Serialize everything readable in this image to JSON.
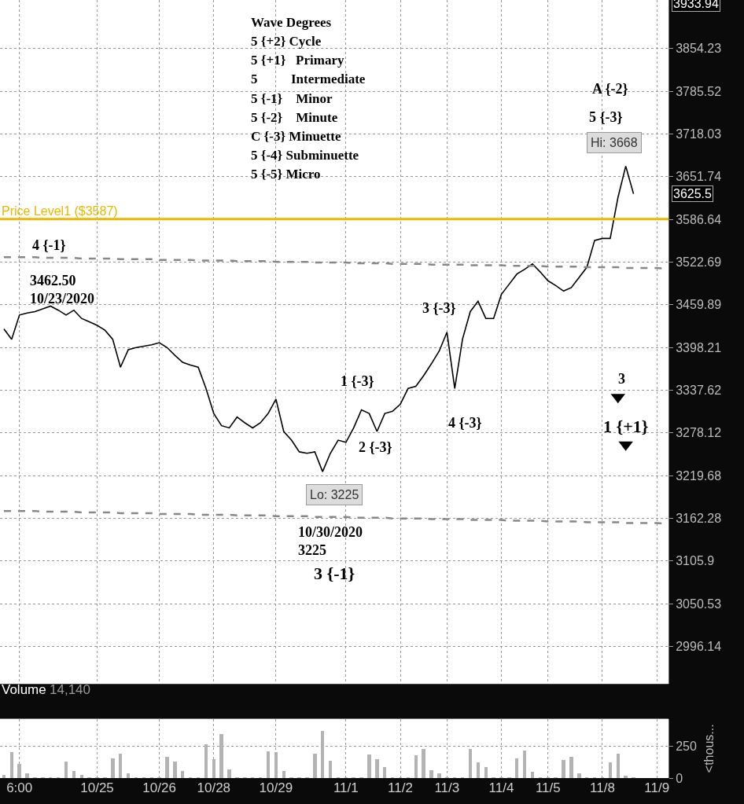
{
  "chart_data": [
    {
      "type": "line",
      "log": true,
      "grid": true,
      "tick_labels": "y",
      "categories": [
        null,
        null,
        null,
        null,
        null,
        null,
        null,
        null,
        null,
        null,
        null,
        null,
        null,
        null,
        null,
        null,
        null,
        null,
        null,
        null,
        null,
        null,
        null,
        null,
        null,
        null,
        null,
        null,
        null,
        null,
        null,
        null,
        null,
        null,
        null,
        null,
        null,
        null,
        null,
        null,
        null,
        null,
        null,
        null,
        null,
        null,
        null,
        null,
        null,
        null,
        null,
        null,
        null,
        null,
        null,
        null,
        null,
        null,
        null,
        null,
        null,
        null,
        null,
        null,
        null,
        null,
        null,
        null,
        null,
        null,
        null,
        null,
        null,
        null,
        null,
        null,
        null,
        null,
        null,
        null,
        null,
        null,
        null,
        null,
        null,
        null
      ],
      "series": [
        {
          "type": "line",
          "color": "#000000",
          "values": [
            3425,
            3410,
            3445,
            3448,
            3450,
            3454,
            3458,
            3452,
            3445,
            3452,
            3440,
            3435,
            3430,
            3423,
            3410,
            3370,
            3395,
            3398,
            3400,
            3402,
            3405,
            3398,
            3387,
            3377,
            3373,
            3370,
            3340,
            3305,
            3288,
            3285,
            3300,
            3292,
            3285,
            3292,
            3305,
            3325,
            3280,
            3268,
            3252,
            3250,
            3252,
            3225,
            3250,
            3268,
            3265,
            3285,
            3310,
            3305,
            3280,
            3305,
            3308,
            3318,
            3340,
            3343,
            3358,
            3375,
            3393,
            3420,
            3340,
            3410,
            3450,
            3465,
            3440,
            3440,
            3475,
            3490,
            3505,
            3512,
            3520,
            3508,
            3495,
            3488,
            3480,
            3485,
            3500,
            3515,
            3555,
            3558,
            3558,
            3620,
            3668,
            3625.5,
            null,
            null,
            null,
            null
          ]
        },
        {
          "type": "line",
          "color": "#888888",
          "line_style": "dashed",
          "values": [
            3530,
            3530,
            3530,
            3530,
            3530,
            3529,
            3529,
            3529,
            3529,
            3529,
            3528,
            3528,
            3528,
            3528,
            3528,
            3527,
            3527,
            3527,
            3527,
            3527,
            3526,
            3526,
            3526,
            3526,
            3526,
            3525,
            3525,
            3525,
            3525,
            3525,
            3524,
            3524,
            3524,
            3524,
            3524,
            3523,
            3523,
            3523,
            3523,
            3523,
            3522,
            3522,
            3522,
            3522,
            3522,
            3521,
            3521,
            3521,
            3521,
            3521,
            3520,
            3520,
            3520,
            3520,
            3520,
            3519,
            3519,
            3519,
            3519,
            3519,
            3518,
            3518,
            3518,
            3518,
            3518,
            3517,
            3517,
            3517,
            3517,
            3517,
            3516,
            3516,
            3516,
            3516,
            3516,
            3515,
            3515,
            3515,
            3515,
            3515,
            3514,
            3514,
            3514,
            3514,
            3514,
            3513
          ]
        },
        {
          "type": "line",
          "color": "#888888",
          "line_style": "dashed",
          "values": [
            3172,
            3172,
            3172,
            3172,
            3172,
            3171,
            3171,
            3171,
            3171,
            3171,
            3170,
            3170,
            3170,
            3170,
            3170,
            3169,
            3169,
            3169,
            3169,
            3169,
            3168,
            3168,
            3168,
            3168,
            3168,
            3167,
            3167,
            3167,
            3167,
            3167,
            3166,
            3166,
            3166,
            3166,
            3166,
            3165,
            3165,
            3165,
            3165,
            3165,
            3164,
            3164,
            3164,
            3164,
            3164,
            3163,
            3163,
            3163,
            3163,
            3163,
            3162,
            3162,
            3162,
            3162,
            3162,
            3161,
            3161,
            3161,
            3161,
            3161,
            3160,
            3160,
            3160,
            3160,
            3160,
            3159,
            3159,
            3159,
            3159,
            3159,
            3158,
            3158,
            3158,
            3158,
            3158,
            3157,
            3157,
            3157,
            3157,
            3157,
            3156,
            3156,
            3156,
            3156,
            3156,
            3155
          ]
        },
        {
          "type": "scatter",
          "color": "#000000",
          "marker": "triangle",
          "values": [
            null,
            null,
            null,
            null,
            null,
            null,
            null,
            null,
            null,
            null,
            null,
            null,
            null,
            null,
            null,
            null,
            null,
            null,
            null,
            null,
            null,
            null,
            null,
            null,
            null,
            null,
            null,
            null,
            null,
            null,
            null,
            null,
            null,
            null,
            null,
            null,
            null,
            null,
            null,
            null,
            null,
            null,
            null,
            null,
            null,
            null,
            null,
            null,
            null,
            null,
            null,
            null,
            null,
            null,
            null,
            null,
            null,
            null,
            null,
            null,
            null,
            null,
            null,
            null,
            null,
            null,
            null,
            null,
            null,
            null,
            null,
            null,
            null,
            null,
            null,
            null,
            null,
            null,
            null,
            3328,
            3262,
            null,
            null,
            null,
            null,
            null
          ]
        }
      ],
      "ylim": [
        2949,
        3934
      ],
      "yticks": [
        2996.14,
        3050.53,
        3105.9,
        3162.28,
        3219.68,
        3278.12,
        3337.62,
        3398.21,
        3459.89,
        3522.69,
        3586.64,
        3651.74,
        3718.03,
        3785.52,
        3854.23
      ],
      "ref_lines": [
        {
          "axis": "y",
          "value": 3587,
          "label": "Price Level1 ($3587)",
          "color": "#e8b900"
        }
      ],
      "annotations": [
        "Hi: 3668",
        "Lo: 3225",
        "3625.5",
        "3933.94",
        "4 {-1}",
        "3462.50\n10/23/2020",
        "1 {-3}",
        "2 {-3}",
        "3 {-3}",
        "4 {-3}",
        "10/30/2020\n3225",
        "3 {-1}",
        "A {-2}",
        "5 {-3}",
        "3",
        "1 {+1}",
        "Wave Degrees",
        "5 {+2} Cycle",
        "5 {+1}   Primary",
        "5          Intermediate",
        "5 {-1}    Minor",
        "5 {-2}    Minute",
        "C {-3} Minuette",
        "5 {-4} Subminuette",
        "5 {-5} Micro"
      ]
    },
    {
      "type": "bar",
      "title": "Volume",
      "ylabel": "<thous...",
      "grid": true,
      "color": "#b3b3b3",
      "annotations": [
        "14,140"
      ],
      "categories": [
        null,
        null,
        "6:00",
        null,
        null,
        null,
        null,
        null,
        null,
        null,
        null,
        null,
        "10/25",
        null,
        null,
        null,
        null,
        null,
        null,
        null,
        "10/26",
        null,
        null,
        null,
        null,
        null,
        null,
        "10/28",
        null,
        null,
        null,
        null,
        null,
        null,
        null,
        "10/29",
        null,
        null,
        null,
        null,
        null,
        null,
        null,
        null,
        "11/1",
        null,
        null,
        null,
        null,
        null,
        null,
        "11/2",
        null,
        null,
        null,
        null,
        null,
        "11/3",
        null,
        null,
        null,
        null,
        null,
        null,
        "11/4",
        null,
        null,
        null,
        null,
        null,
        "11/5",
        null,
        null,
        null,
        null,
        null,
        null,
        "11/8",
        null,
        null,
        null,
        null,
        null,
        null,
        "11/9",
        null
      ],
      "values": [
        30,
        204,
        116,
        40,
        8,
        5,
        6,
        5,
        134,
        60,
        30,
        5,
        5,
        5,
        158,
        194,
        40,
        5,
        6,
        5,
        8,
        169,
        130,
        60,
        5,
        10,
        264,
        151,
        345,
        70,
        6,
        5,
        6,
        8,
        211,
        204,
        60,
        6,
        5,
        8,
        194,
        370,
        140,
        5,
        6,
        5,
        8,
        187,
        151,
        90,
        6,
        10,
        5,
        180,
        229,
        63,
        40,
        10,
        10,
        5,
        229,
        123,
        90,
        8,
        6,
        5,
        158,
        215,
        50,
        6,
        5,
        8,
        144,
        169,
        40,
        6,
        5,
        6,
        123,
        194,
        20,
        6,
        null,
        null,
        null,
        null
      ],
      "ylim": [
        0,
        462
      ],
      "yticks": [
        0,
        250
      ]
    }
  ]
}
